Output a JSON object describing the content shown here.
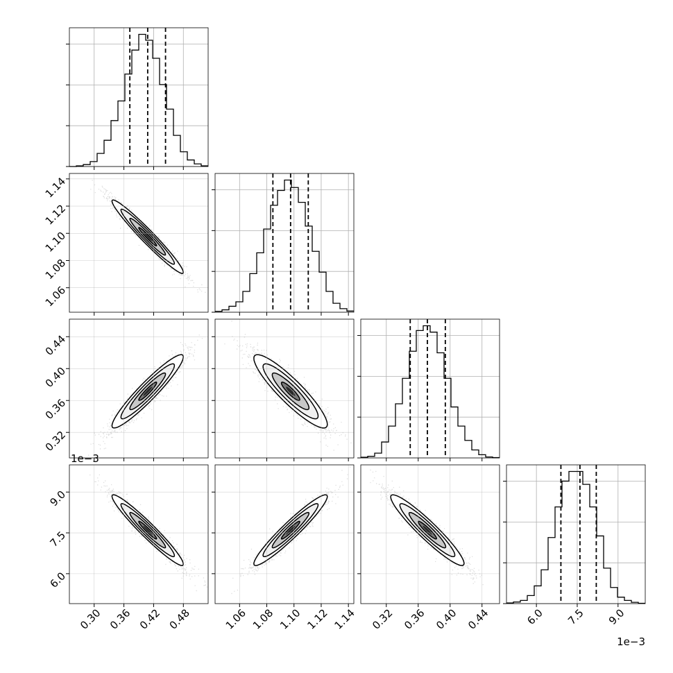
{
  "chart_data": {
    "type": "corner",
    "title": "",
    "parameter_axes": [
      {
        "index": 0,
        "lim": [
          0.25,
          0.53
        ],
        "ticks": [
          "0.30",
          "0.36",
          "0.42",
          "0.48"
        ],
        "tick_values": [
          0.3,
          0.36,
          0.42,
          0.48
        ],
        "offset_label": ""
      },
      {
        "index": 1,
        "lim": [
          1.042,
          1.144
        ],
        "ticks": [
          "1.06",
          "1.08",
          "1.10",
          "1.12",
          "1.14"
        ],
        "tick_values": [
          1.06,
          1.08,
          1.1,
          1.12,
          1.14
        ],
        "offset_label": ""
      },
      {
        "index": 2,
        "lim": [
          0.288,
          0.462
        ],
        "ticks": [
          "0.32",
          "0.36",
          "0.40",
          "0.44"
        ],
        "tick_values": [
          0.32,
          0.36,
          0.4,
          0.44
        ],
        "offset_label": ""
      },
      {
        "index": 3,
        "lim": [
          0.0049,
          0.01
        ],
        "ticks": [
          "6.0",
          "7.5",
          "9.0"
        ],
        "tick_values": [
          0.006,
          0.0075,
          0.009
        ],
        "offset_label": "1e−3"
      }
    ],
    "histograms": [
      {
        "param": 0,
        "quantiles": [
          0.372,
          0.408,
          0.444
        ],
        "bin_edges": [
          0.25,
          0.264,
          0.278,
          0.292,
          0.306,
          0.32,
          0.334,
          0.348,
          0.362,
          0.376,
          0.39,
          0.404,
          0.418,
          0.432,
          0.446,
          0.46,
          0.474,
          0.488,
          0.502,
          0.516,
          0.53
        ],
        "counts": [
          0,
          2,
          6,
          15,
          40,
          80,
          140,
          200,
          282,
          355,
          403,
          385,
          330,
          250,
          175,
          95,
          45,
          20,
          8,
          2
        ]
      },
      {
        "param": 1,
        "quantiles": [
          1.0845,
          1.0975,
          1.1105
        ],
        "bin_edges": [
          1.042,
          1.0471,
          1.0522,
          1.0573,
          1.0624,
          1.0675,
          1.0726,
          1.0777,
          1.0828,
          1.0879,
          1.093,
          1.0981,
          1.1032,
          1.1083,
          1.1134,
          1.1185,
          1.1236,
          1.1287,
          1.1338,
          1.1389,
          1.144
        ],
        "counts": [
          3,
          8,
          20,
          35,
          70,
          130,
          200,
          280,
          360,
          410,
          445,
          420,
          370,
          290,
          205,
          135,
          70,
          30,
          12,
          4
        ]
      },
      {
        "param": 2,
        "quantiles": [
          0.35,
          0.3715,
          0.394
        ],
        "bin_edges": [
          0.288,
          0.2967,
          0.3054,
          0.3141,
          0.3228,
          0.3315,
          0.3402,
          0.3489,
          0.3576,
          0.3663,
          0.375,
          0.3837,
          0.3924,
          0.4011,
          0.4098,
          0.4185,
          0.4272,
          0.4359,
          0.4446,
          0.4533,
          0.462
        ],
        "counts": [
          2,
          5,
          15,
          50,
          100,
          170,
          250,
          335,
          400,
          415,
          395,
          330,
          250,
          160,
          100,
          55,
          25,
          10,
          3,
          1
        ]
      },
      {
        "param": 3,
        "quantiles": [
          0.0069,
          0.0076,
          0.0082
        ],
        "bin_edges": [
          0.0049,
          0.005155,
          0.00541,
          0.005665,
          0.00592,
          0.006175,
          0.00643,
          0.006685,
          0.00694,
          0.007195,
          0.00745,
          0.007705,
          0.00796,
          0.008215,
          0.00847,
          0.008725,
          0.00898,
          0.009235,
          0.00949,
          0.009745,
          0.01
        ],
        "counts": [
          2,
          5,
          10,
          25,
          55,
          105,
          205,
          300,
          380,
          410,
          410,
          370,
          300,
          210,
          110,
          50,
          20,
          10,
          4,
          1
        ]
      }
    ],
    "pairs": [
      {
        "x_param": 0,
        "y_param": 1,
        "mean": [
          0.408,
          1.0975
        ],
        "sd": [
          0.036,
          0.0135
        ],
        "corr": -0.97
      },
      {
        "x_param": 0,
        "y_param": 2,
        "mean": [
          0.408,
          0.3715
        ],
        "sd": [
          0.036,
          0.023
        ],
        "corr": 0.94
      },
      {
        "x_param": 1,
        "y_param": 2,
        "mean": [
          1.0975,
          0.3715
        ],
        "sd": [
          0.0135,
          0.023
        ],
        "corr": -0.9
      },
      {
        "x_param": 0,
        "y_param": 3,
        "mean": [
          0.408,
          0.0076
        ],
        "sd": [
          0.036,
          0.00065
        ],
        "corr": -0.96
      },
      {
        "x_param": 1,
        "y_param": 3,
        "mean": [
          1.0975,
          0.0076
        ],
        "sd": [
          0.0135,
          0.00065
        ],
        "corr": 0.95
      },
      {
        "x_param": 2,
        "y_param": 3,
        "mean": [
          0.3715,
          0.0076
        ],
        "sd": [
          0.023,
          0.00065
        ],
        "corr": -0.94
      }
    ],
    "contour_levels_sigma": [
      0.5,
      1.0,
      1.5,
      2.0
    ],
    "grid": true,
    "quantile_line_style": "dashed"
  }
}
